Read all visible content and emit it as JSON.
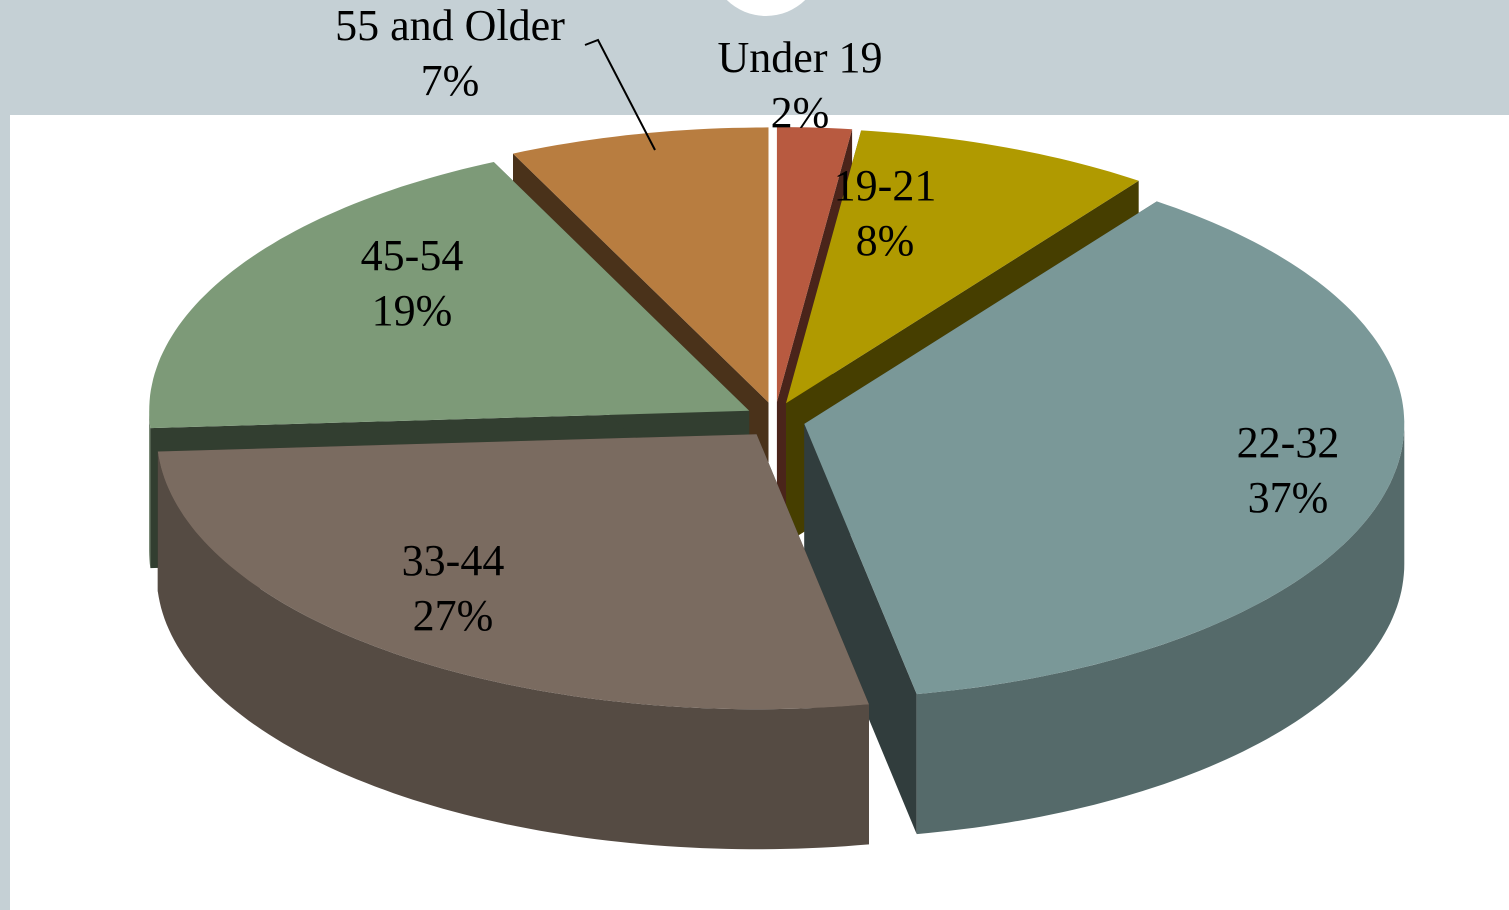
{
  "chart_data": {
    "type": "pie",
    "categories": [
      "Under 19",
      "19-21",
      "22-32",
      "33-44",
      "45-54",
      "55 and Older"
    ],
    "values": [
      2,
      8,
      37,
      27,
      19,
      7
    ],
    "value_labels": [
      "2%",
      "8%",
      "37%",
      "27%",
      "19%",
      "7%"
    ],
    "colors": [
      "#b85a40",
      "#b09a00",
      "#7a9898",
      "#7a6b60",
      "#7d9a78",
      "#b87d40"
    ]
  }
}
